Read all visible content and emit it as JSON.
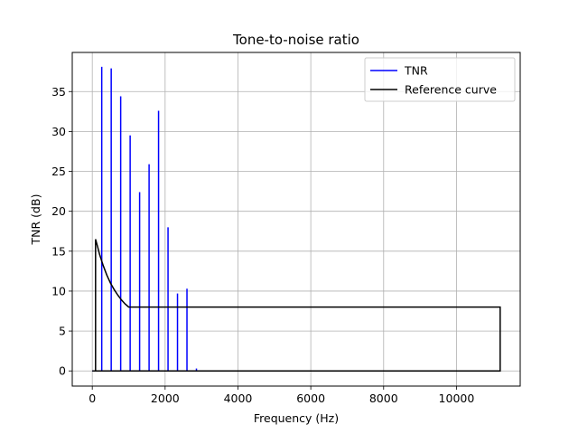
{
  "chart_data": {
    "type": "line",
    "title": "Tone-to-noise ratio",
    "xlabel": "Frequency (Hz)",
    "ylabel": "TNR (dB)",
    "xlim": [
      -550,
      11750
    ],
    "ylim": [
      -1.9,
      39.9
    ],
    "xticks": [
      0,
      2000,
      4000,
      6000,
      8000,
      10000
    ],
    "yticks": [
      0,
      5,
      10,
      15,
      20,
      25,
      30,
      35
    ],
    "grid": true,
    "legend_position": "top-right",
    "series": [
      {
        "name": "TNR",
        "color": "#0000ff",
        "peaks": [
          {
            "x": 260,
            "y": 38.1
          },
          {
            "x": 520,
            "y": 37.9
          },
          {
            "x": 780,
            "y": 34.4
          },
          {
            "x": 1040,
            "y": 29.5
          },
          {
            "x": 1300,
            "y": 22.4
          },
          {
            "x": 1560,
            "y": 25.9
          },
          {
            "x": 1820,
            "y": 32.6
          },
          {
            "x": 2080,
            "y": 18.0
          },
          {
            "x": 2340,
            "y": 9.7
          },
          {
            "x": 2600,
            "y": 10.3
          },
          {
            "x": 2860,
            "y": 0.3
          }
        ],
        "baseline_range": [
          0,
          11200
        ]
      },
      {
        "name": "Reference curve",
        "color": "#000000",
        "x": [
          0,
          90,
          90,
          150,
          200,
          300,
          400,
          500,
          600,
          700,
          800,
          900,
          1000,
          11200,
          11200,
          0
        ],
        "y": [
          0,
          0,
          16.5,
          15.5,
          14.6,
          13.2,
          12.0,
          11.0,
          10.2,
          9.5,
          8.9,
          8.4,
          8.0,
          8.0,
          0,
          0
        ]
      }
    ]
  }
}
